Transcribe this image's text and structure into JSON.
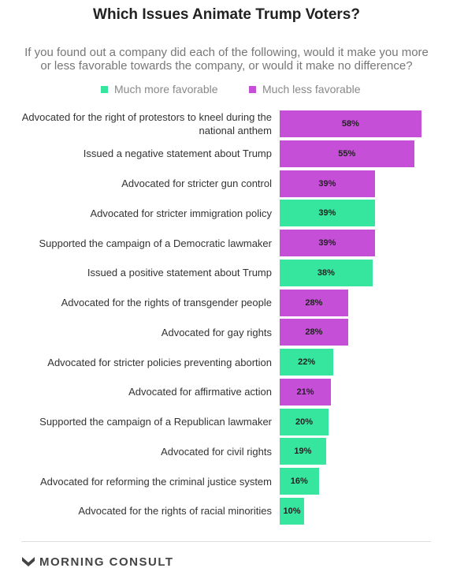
{
  "chart_data": {
    "type": "bar",
    "orientation": "horizontal",
    "title": "Which Issues Animate Trump Voters?",
    "subtitle": "If you found out a company did each of the following, would it make you more or less favorable towards the company, or would it make no difference?",
    "categories": [
      "Advocated for the right of protestors to kneel during the national anthem",
      "Issued a negative statement about Trump",
      "Advocated for stricter gun control",
      "Advocated for stricter immigration policy",
      "Supported the campaign of a Democratic lawmaker",
      "Issued a positive statement about Trump",
      "Advocated for the rights of transgender people",
      "Advocated for gay rights",
      "Advocated for stricter policies preventing abortion",
      "Advocated for affirmative action",
      "Supported the campaign of a Republican lawmaker",
      "Advocated for civil rights",
      "Advocated for reforming the criminal justice system",
      "Advocated for the rights of racial minorities"
    ],
    "series": [
      {
        "name": "Much more favorable",
        "color": "#36e59e",
        "values": [
          null,
          null,
          null,
          39,
          null,
          38,
          null,
          null,
          22,
          null,
          20,
          19,
          16,
          10
        ],
        "value_labels": [
          null,
          null,
          null,
          "39%",
          null,
          "38%",
          null,
          null,
          "22%",
          null,
          "20%",
          "19%",
          "16%",
          "10%"
        ]
      },
      {
        "name": "Much less favorable",
        "color": "#c64fd8",
        "values": [
          58,
          55,
          39,
          null,
          39,
          null,
          28,
          28,
          null,
          21,
          null,
          null,
          null,
          null
        ],
        "value_labels": [
          "58%",
          "55%",
          "39%",
          null,
          "39%",
          null,
          "28%",
          "28%",
          null,
          "21%",
          null,
          null,
          null,
          null
        ]
      }
    ]
  },
  "footer": "MORNING CONSULT"
}
